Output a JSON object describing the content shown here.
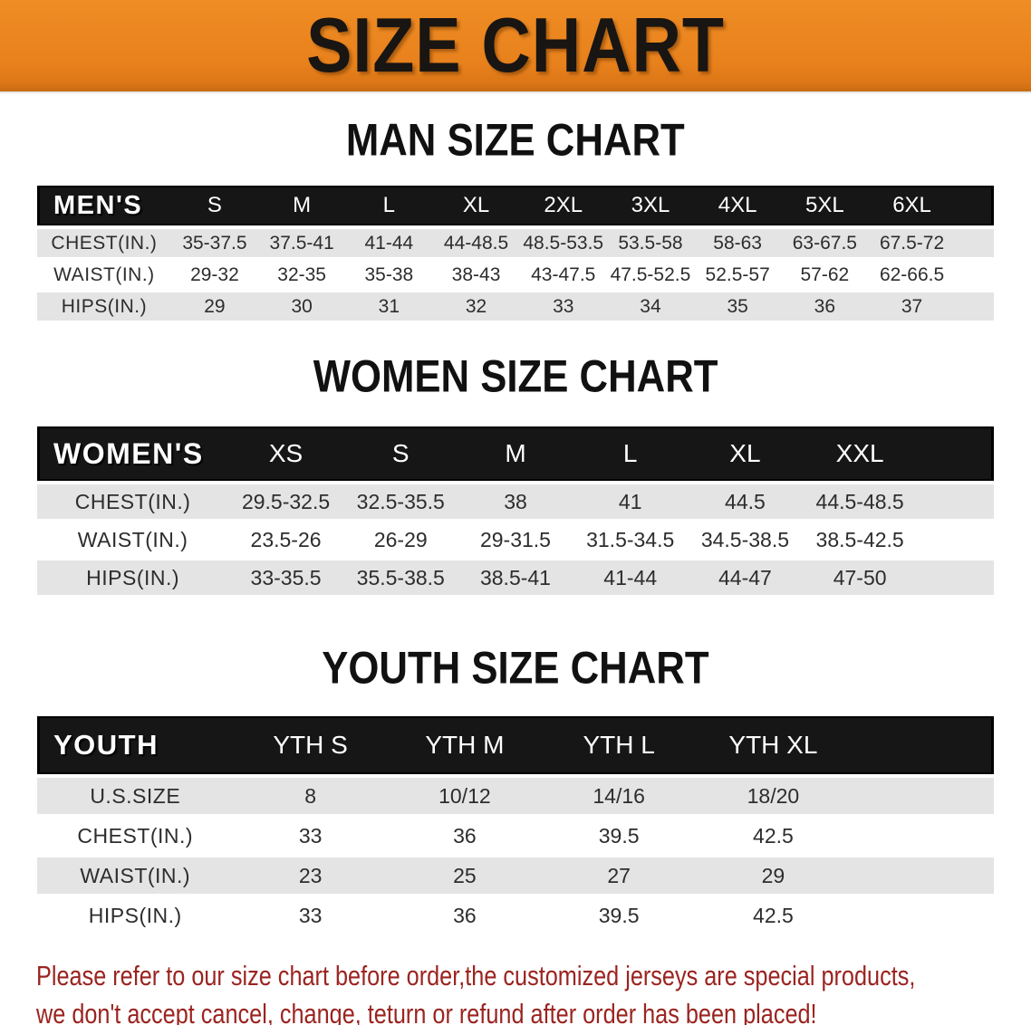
{
  "banner": {
    "title": "SIZE CHART",
    "bg_color": "#e8811c",
    "text_color": "#181512"
  },
  "sections": {
    "men": {
      "title": "MAN SIZE CHART",
      "table": {
        "label": "MEN'S",
        "sizes": [
          "S",
          "M",
          "L",
          "XL",
          "2XL",
          "3XL",
          "4XL",
          "5XL",
          "6XL"
        ],
        "rows": [
          {
            "label": "CHEST(IN.)",
            "values": [
              "35-37.5",
              "37.5-41",
              "41-44",
              "44-48.5",
              "48.5-53.5",
              "53.5-58",
              "58-63",
              "63-67.5",
              "67.5-72"
            ]
          },
          {
            "label": "WAIST(IN.)",
            "values": [
              "29-32",
              "32-35",
              "35-38",
              "38-43",
              "43-47.5",
              "47.5-52.5",
              "52.5-57",
              "57-62",
              "62-66.5"
            ]
          },
          {
            "label": "HIPS(IN.)",
            "values": [
              "29",
              "30",
              "31",
              "32",
              "33",
              "34",
              "35",
              "36",
              "37"
            ]
          }
        ]
      }
    },
    "women": {
      "title": "WOMEN SIZE CHART",
      "table": {
        "label": "WOMEN'S",
        "sizes": [
          "XS",
          "S",
          "M",
          "L",
          "XL",
          "XXL"
        ],
        "rows": [
          {
            "label": "CHEST(IN.)",
            "values": [
              "29.5-32.5",
              "32.5-35.5",
              "38",
              "41",
              "44.5",
              "44.5-48.5"
            ]
          },
          {
            "label": "WAIST(IN.)",
            "values": [
              "23.5-26",
              "26-29",
              "29-31.5",
              "31.5-34.5",
              "34.5-38.5",
              "38.5-42.5"
            ]
          },
          {
            "label": "HIPS(IN.)",
            "values": [
              "33-35.5",
              "35.5-38.5",
              "38.5-41",
              "41-44",
              "44-47",
              "47-50"
            ]
          }
        ]
      }
    },
    "youth": {
      "title": "YOUTH SIZE CHART",
      "table": {
        "label": "YOUTH",
        "sizes": [
          "YTH S",
          "YTH M",
          "YTH L",
          "YTH XL"
        ],
        "rows": [
          {
            "label": "U.S.SIZE",
            "values": [
              "8",
              "10/12",
              "14/16",
              "18/20"
            ]
          },
          {
            "label": "CHEST(IN.)",
            "values": [
              "33",
              "36",
              "39.5",
              "42.5"
            ]
          },
          {
            "label": "WAIST(IN.)",
            "values": [
              "23",
              "25",
              "27",
              "29"
            ]
          },
          {
            "label": "HIPS(IN.)",
            "values": [
              "33",
              "36",
              "39.5",
              "42.5"
            ]
          }
        ]
      }
    }
  },
  "disclaimer": {
    "line1": "Please refer to our size chart before order,the customized jerseys are special products,",
    "line2": "we don't accept cancel, change, teturn or refund after order has been placed!",
    "color": "#9b2420"
  }
}
